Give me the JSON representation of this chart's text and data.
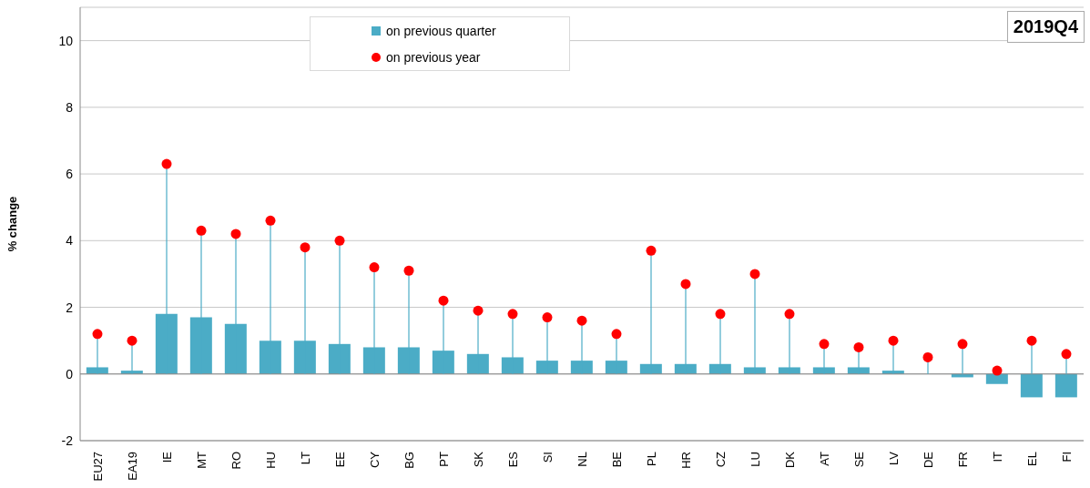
{
  "chart_data": {
    "type": "bar",
    "title": "2019Q4",
    "ylabel": "% change",
    "categories": [
      "EU27",
      "EA19",
      "IE",
      "MT",
      "RO",
      "HU",
      "LT",
      "EE",
      "CY",
      "BG",
      "PT",
      "SK",
      "ES",
      "SI",
      "NL",
      "BE",
      "PL",
      "HR",
      "CZ",
      "LU",
      "DK",
      "AT",
      "SE",
      "LV",
      "DE",
      "FR",
      "IT",
      "EL",
      "FI"
    ],
    "series": [
      {
        "name": "on previous quarter",
        "color": "#4bacc6",
        "values": [
          0.2,
          0.1,
          1.8,
          1.7,
          1.5,
          1.0,
          1.0,
          0.9,
          0.8,
          0.8,
          0.7,
          0.6,
          0.5,
          0.4,
          0.4,
          0.4,
          0.3,
          0.3,
          0.3,
          0.2,
          0.2,
          0.2,
          0.2,
          0.1,
          0.0,
          -0.1,
          -0.3,
          -0.7,
          -0.7
        ]
      },
      {
        "name": "on previous year",
        "type": "lollipop",
        "color": "#ff0000",
        "values": [
          1.2,
          1.0,
          6.3,
          4.3,
          4.2,
          4.6,
          3.8,
          4.0,
          3.2,
          3.1,
          2.2,
          1.9,
          1.8,
          1.7,
          1.6,
          1.2,
          3.7,
          2.7,
          1.8,
          3.0,
          1.8,
          0.9,
          0.8,
          1.0,
          0.5,
          0.9,
          0.1,
          1.0,
          0.6
        ]
      }
    ],
    "ylim": [
      -2,
      11
    ],
    "yticks": [
      -2,
      0,
      2,
      4,
      6,
      8,
      10
    ],
    "grid": "y",
    "legend": "top",
    "marker": "circle"
  }
}
